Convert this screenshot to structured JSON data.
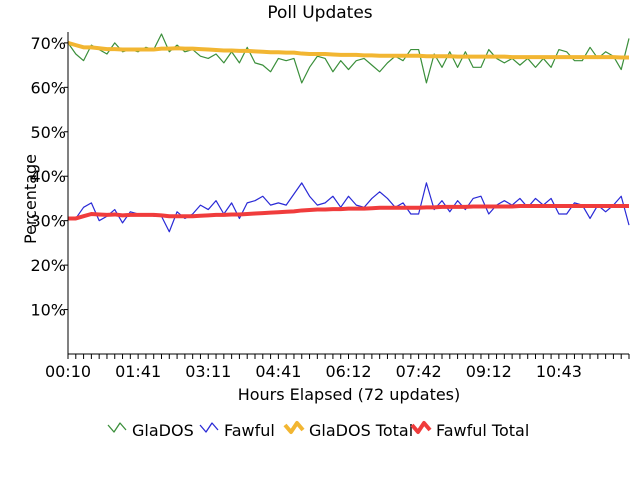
{
  "chart_data": {
    "type": "line",
    "title": "Poll Updates",
    "xlabel": "Hours Elapsed (72 updates)",
    "ylabel": "Percentage",
    "ylim": [
      0,
      72
    ],
    "y_ticks": [
      10,
      20,
      30,
      40,
      50,
      60,
      70
    ],
    "y_tick_labels": [
      "10%",
      "20%",
      "30%",
      "40%",
      "50%",
      "60%",
      "70%"
    ],
    "x_tick_labels": [
      "00:10",
      "01:41",
      "03:11",
      "04:41",
      "06:12",
      "07:42",
      "09:12",
      "10:43"
    ],
    "x_tick_update_index": [
      1,
      10,
      19,
      28,
      37,
      46,
      55,
      64
    ],
    "x_count": 72,
    "grid": false,
    "legend_position": "bottom",
    "series": [
      {
        "name": "GlaDOS",
        "color": "#3b8f3b",
        "values": [
          70,
          67.5,
          66,
          69.5,
          68.5,
          67.5,
          70,
          68,
          68.5,
          68,
          69,
          68.5,
          72,
          68,
          69.5,
          68,
          68.5,
          67,
          66.5,
          67.5,
          65.5,
          68,
          65.5,
          69,
          65.5,
          65,
          63.5,
          66.5,
          66,
          66.5,
          61,
          64.5,
          67,
          66.5,
          63.5,
          66,
          64,
          66,
          66.5,
          65,
          63.5,
          65.5,
          67,
          66,
          68.5,
          68.5,
          61,
          67.5,
          64.5,
          68,
          64.5,
          68,
          64.5,
          64.5,
          68.5,
          66.5,
          65.5,
          66.5,
          65,
          66.5,
          64.5,
          66.5,
          64.5,
          68.5,
          68,
          66,
          66,
          69,
          66.5,
          68,
          67,
          64,
          71
        ]
      },
      {
        "name": "Fawful",
        "color": "#2a2ad6",
        "values": [
          30.5,
          30.5,
          33,
          34,
          30,
          31,
          32.5,
          29.5,
          32,
          31.5,
          31.5,
          31,
          31,
          27.5,
          32,
          30.5,
          31.5,
          33.5,
          32.5,
          34.5,
          31.5,
          34,
          30.5,
          34,
          34.5,
          35.5,
          33.5,
          34,
          33.5,
          36,
          38.5,
          35.5,
          33.5,
          34,
          35.5,
          33,
          35.5,
          33.5,
          33,
          35,
          36.5,
          35,
          33,
          34,
          31.5,
          31.5,
          38.5,
          32.5,
          34.5,
          32,
          34.5,
          32.5,
          35,
          35.5,
          31.5,
          33.5,
          34.5,
          33.5,
          35,
          33,
          35,
          33.5,
          35,
          31.5,
          31.5,
          34,
          33.5,
          30.5,
          33.5,
          32,
          33.5,
          35.5,
          29
        ]
      },
      {
        "name": "GlaDOS Total",
        "color": "#f2b632",
        "values": [
          70,
          69.5,
          69,
          69,
          68.8,
          68.6,
          68.6,
          68.5,
          68.5,
          68.5,
          68.5,
          68.5,
          68.7,
          68.7,
          68.8,
          68.7,
          68.7,
          68.6,
          68.5,
          68.4,
          68.3,
          68.3,
          68.2,
          68.2,
          68.1,
          68,
          67.9,
          67.9,
          67.8,
          67.8,
          67.6,
          67.5,
          67.5,
          67.5,
          67.4,
          67.3,
          67.3,
          67.3,
          67.2,
          67.2,
          67.1,
          67.1,
          67.1,
          67.1,
          67.1,
          67.1,
          67,
          67,
          67,
          67,
          66.9,
          66.9,
          66.9,
          66.9,
          66.9,
          66.9,
          66.9,
          66.8,
          66.8,
          66.8,
          66.8,
          66.8,
          66.8,
          66.8,
          66.8,
          66.8,
          66.8,
          66.8,
          66.8,
          66.8,
          66.8,
          66.7,
          66.7
        ]
      },
      {
        "name": "Fawful Total",
        "color": "#f03c3c",
        "values": [
          30.5,
          30.5,
          31,
          31.5,
          31.4,
          31.3,
          31.4,
          31.2,
          31.3,
          31.3,
          31.3,
          31.3,
          31.2,
          31,
          31,
          31,
          31,
          31.1,
          31.2,
          31.3,
          31.3,
          31.4,
          31.4,
          31.5,
          31.6,
          31.7,
          31.8,
          31.9,
          32,
          32.1,
          32.3,
          32.4,
          32.5,
          32.5,
          32.6,
          32.6,
          32.7,
          32.7,
          32.7,
          32.8,
          32.9,
          32.9,
          32.9,
          32.9,
          32.9,
          32.9,
          33,
          33,
          33.1,
          33.1,
          33.1,
          33.1,
          33.2,
          33.2,
          33.2,
          33.2,
          33.2,
          33.2,
          33.3,
          33.3,
          33.3,
          33.3,
          33.3,
          33.3,
          33.3,
          33.3,
          33.3,
          33.3,
          33.3,
          33.3,
          33.3,
          33.3,
          33.3
        ]
      }
    ]
  }
}
